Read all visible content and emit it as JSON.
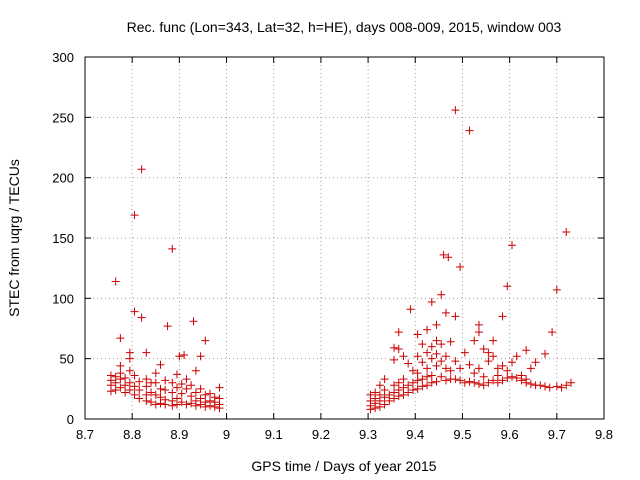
{
  "chart_data": {
    "type": "scatter",
    "title": "Rec. func (Lon=343, Lat=32, h=HE), days 008-009, 2015, window 003",
    "xlabel": "GPS time / Days of year 2015",
    "ylabel": "STEC from uqrg / TECUs",
    "xlim": [
      8.7,
      9.8
    ],
    "ylim": [
      0,
      300
    ],
    "x_ticks": [
      "8.7",
      "8.8",
      "8.9",
      "9",
      "9.1",
      "9.2",
      "9.3",
      "9.4",
      "9.5",
      "9.6",
      "9.7",
      "9.8"
    ],
    "y_ticks": [
      "0",
      "50",
      "100",
      "150",
      "200",
      "250",
      "300"
    ],
    "grid": true,
    "legend": "none",
    "marker": "plus",
    "color": "#cc0000",
    "series": [
      {
        "points": [
          [
            8.755,
            36
          ],
          [
            8.755,
            32
          ],
          [
            8.755,
            28
          ],
          [
            8.755,
            23
          ],
          [
            8.765,
            35
          ],
          [
            8.765,
            30
          ],
          [
            8.765,
            24
          ],
          [
            8.765,
            114
          ],
          [
            8.775,
            67
          ],
          [
            8.775,
            44
          ],
          [
            8.775,
            38
          ],
          [
            8.775,
            33
          ],
          [
            8.775,
            26
          ],
          [
            8.785,
            34
          ],
          [
            8.785,
            28
          ],
          [
            8.785,
            22
          ],
          [
            8.795,
            55
          ],
          [
            8.795,
            50
          ],
          [
            8.795,
            40
          ],
          [
            8.795,
            30
          ],
          [
            8.795,
            24
          ],
          [
            8.805,
            169
          ],
          [
            8.805,
            89
          ],
          [
            8.805,
            36
          ],
          [
            8.805,
            27
          ],
          [
            8.805,
            20
          ],
          [
            8.815,
            31
          ],
          [
            8.815,
            24
          ],
          [
            8.815,
            17
          ],
          [
            8.82,
            207
          ],
          [
            8.82,
            84
          ],
          [
            8.83,
            55
          ],
          [
            8.83,
            33
          ],
          [
            8.83,
            27
          ],
          [
            8.83,
            20
          ],
          [
            8.83,
            15
          ],
          [
            8.84,
            30
          ],
          [
            8.84,
            22
          ],
          [
            8.84,
            14
          ],
          [
            8.85,
            38
          ],
          [
            8.85,
            30
          ],
          [
            8.85,
            20
          ],
          [
            8.85,
            12
          ],
          [
            8.86,
            45
          ],
          [
            8.86,
            25
          ],
          [
            8.86,
            18
          ],
          [
            8.86,
            13
          ],
          [
            8.87,
            32
          ],
          [
            8.87,
            24
          ],
          [
            8.87,
            16
          ],
          [
            8.87,
            12
          ],
          [
            8.875,
            77
          ],
          [
            8.885,
            141
          ],
          [
            8.885,
            30
          ],
          [
            8.885,
            22
          ],
          [
            8.885,
            15
          ],
          [
            8.885,
            11
          ],
          [
            8.895,
            37
          ],
          [
            8.895,
            26
          ],
          [
            8.895,
            17
          ],
          [
            8.895,
            12
          ],
          [
            8.9,
            52
          ],
          [
            8.905,
            29
          ],
          [
            8.905,
            21
          ],
          [
            8.905,
            14
          ],
          [
            8.91,
            53
          ],
          [
            8.915,
            33
          ],
          [
            8.915,
            25
          ],
          [
            8.915,
            12
          ],
          [
            8.925,
            28
          ],
          [
            8.925,
            19
          ],
          [
            8.925,
            13
          ],
          [
            8.93,
            81
          ],
          [
            8.935,
            40
          ],
          [
            8.935,
            22
          ],
          [
            8.935,
            15
          ],
          [
            8.935,
            11
          ],
          [
            8.945,
            52
          ],
          [
            8.945,
            25
          ],
          [
            8.945,
            17
          ],
          [
            8.945,
            12
          ],
          [
            8.955,
            65
          ],
          [
            8.955,
            20
          ],
          [
            8.955,
            14
          ],
          [
            8.955,
            10
          ],
          [
            8.965,
            21
          ],
          [
            8.965,
            15
          ],
          [
            8.965,
            11
          ],
          [
            8.975,
            18
          ],
          [
            8.975,
            14
          ],
          [
            8.975,
            10
          ],
          [
            8.985,
            26
          ],
          [
            8.985,
            17
          ],
          [
            8.985,
            12
          ],
          [
            8.985,
            9
          ],
          [
            9.305,
            20
          ],
          [
            9.305,
            15
          ],
          [
            9.305,
            11
          ],
          [
            9.305,
            8
          ],
          [
            9.315,
            22
          ],
          [
            9.315,
            17
          ],
          [
            9.315,
            13
          ],
          [
            9.315,
            9
          ],
          [
            9.325,
            28
          ],
          [
            9.325,
            20
          ],
          [
            9.325,
            15
          ],
          [
            9.325,
            10
          ],
          [
            9.335,
            33
          ],
          [
            9.335,
            24
          ],
          [
            9.335,
            18
          ],
          [
            9.335,
            12
          ],
          [
            9.345,
            20
          ],
          [
            9.345,
            15
          ],
          [
            9.355,
            59
          ],
          [
            9.355,
            49
          ],
          [
            9.355,
            28
          ],
          [
            9.355,
            22
          ],
          [
            9.355,
            17
          ],
          [
            9.365,
            72
          ],
          [
            9.365,
            58
          ],
          [
            9.365,
            30
          ],
          [
            9.365,
            24
          ],
          [
            9.365,
            19
          ],
          [
            9.375,
            52
          ],
          [
            9.375,
            33
          ],
          [
            9.375,
            26
          ],
          [
            9.375,
            20
          ],
          [
            9.385,
            46
          ],
          [
            9.385,
            28
          ],
          [
            9.385,
            22
          ],
          [
            9.39,
            91
          ],
          [
            9.395,
            40
          ],
          [
            9.395,
            30
          ],
          [
            9.395,
            24
          ],
          [
            9.405,
            70
          ],
          [
            9.405,
            52
          ],
          [
            9.405,
            38
          ],
          [
            9.405,
            32
          ],
          [
            9.405,
            25
          ],
          [
            9.415,
            62
          ],
          [
            9.415,
            47
          ],
          [
            9.415,
            33
          ],
          [
            9.415,
            27
          ],
          [
            9.425,
            74
          ],
          [
            9.425,
            55
          ],
          [
            9.425,
            42
          ],
          [
            9.425,
            35
          ],
          [
            9.425,
            28
          ],
          [
            9.435,
            97
          ],
          [
            9.435,
            60
          ],
          [
            9.435,
            50
          ],
          [
            9.435,
            36
          ],
          [
            9.435,
            30
          ],
          [
            9.445,
            78
          ],
          [
            9.445,
            65
          ],
          [
            9.445,
            54
          ],
          [
            9.445,
            44
          ],
          [
            9.445,
            31
          ],
          [
            9.455,
            103
          ],
          [
            9.455,
            62
          ],
          [
            9.455,
            48
          ],
          [
            9.455,
            35
          ],
          [
            9.46,
            136
          ],
          [
            9.465,
            88
          ],
          [
            9.465,
            52
          ],
          [
            9.465,
            42
          ],
          [
            9.465,
            32
          ],
          [
            9.47,
            134
          ],
          [
            9.475,
            64
          ],
          [
            9.475,
            40
          ],
          [
            9.475,
            33
          ],
          [
            9.485,
            256
          ],
          [
            9.485,
            85
          ],
          [
            9.485,
            48
          ],
          [
            9.485,
            33
          ],
          [
            9.495,
            126
          ],
          [
            9.495,
            42
          ],
          [
            9.495,
            32
          ],
          [
            9.505,
            55
          ],
          [
            9.505,
            30
          ],
          [
            9.515,
            239
          ],
          [
            9.515,
            45
          ],
          [
            9.515,
            31
          ],
          [
            9.525,
            65
          ],
          [
            9.525,
            38
          ],
          [
            9.525,
            30
          ],
          [
            9.535,
            78
          ],
          [
            9.535,
            72
          ],
          [
            9.535,
            42
          ],
          [
            9.535,
            29
          ],
          [
            9.545,
            58
          ],
          [
            9.545,
            35
          ],
          [
            9.545,
            28
          ],
          [
            9.555,
            55
          ],
          [
            9.555,
            48
          ],
          [
            9.555,
            30
          ],
          [
            9.565,
            65
          ],
          [
            9.565,
            52
          ],
          [
            9.565,
            32
          ],
          [
            9.575,
            42
          ],
          [
            9.575,
            36
          ],
          [
            9.575,
            30
          ],
          [
            9.585,
            85
          ],
          [
            9.585,
            44
          ],
          [
            9.585,
            32
          ],
          [
            9.595,
            110
          ],
          [
            9.595,
            40
          ],
          [
            9.595,
            34
          ],
          [
            9.605,
            144
          ],
          [
            9.605,
            47
          ],
          [
            9.605,
            35
          ],
          [
            9.615,
            52
          ],
          [
            9.615,
            34
          ],
          [
            9.625,
            36
          ],
          [
            9.625,
            32
          ],
          [
            9.635,
            57
          ],
          [
            9.635,
            33
          ],
          [
            9.635,
            30
          ],
          [
            9.645,
            42
          ],
          [
            9.645,
            29
          ],
          [
            9.655,
            47
          ],
          [
            9.655,
            28
          ],
          [
            9.665,
            28
          ],
          [
            9.675,
            54
          ],
          [
            9.675,
            27
          ],
          [
            9.685,
            26
          ],
          [
            9.69,
            72
          ],
          [
            9.7,
            107
          ],
          [
            9.7,
            27
          ],
          [
            9.71,
            26
          ],
          [
            9.72,
            155
          ],
          [
            9.72,
            28
          ],
          [
            9.73,
            30
          ]
        ]
      }
    ]
  }
}
